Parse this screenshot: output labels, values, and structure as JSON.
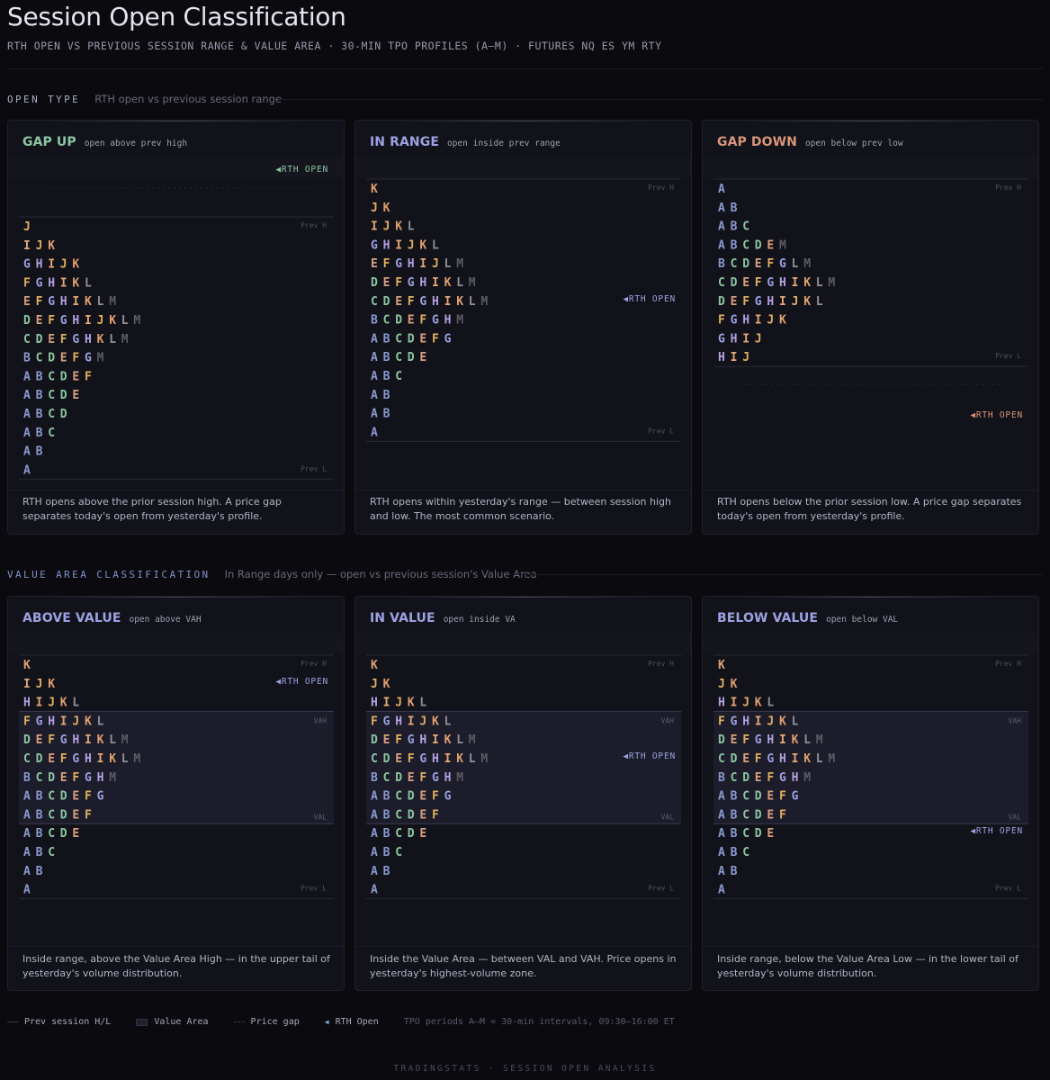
{
  "header": {
    "title": "Session Open Classification",
    "subtitle": "RTH OPEN VS PREVIOUS SESSION RANGE & VALUE AREA · 30-MIN TPO PROFILES (A–M) · FUTURES NQ ES YM RTY"
  },
  "sections": [
    {
      "label": "OPEN TYPE",
      "sub": "RTH open vs previous session range",
      "color": "#a8aec8"
    },
    {
      "label": "VALUE AREA CLASSIFICATION",
      "sub": "In Range days only — open vs previous session's Value Area",
      "color": "#7f8fc8"
    }
  ],
  "letter_colors": {
    "A": "#8a9ad0",
    "B": "#8a9ad0",
    "C": "#8cc6a2",
    "D": "#8cc6a2",
    "E": "#d9a080",
    "F": "#e0b060",
    "G": "#9ca2e2",
    "H": "#b4a2e2",
    "I": "#e4a878",
    "J": "#e0b060",
    "K": "#e0a070",
    "L": "#909096",
    "M": "#5c5c66"
  },
  "marks": {
    "prev_high": "Prev H",
    "prev_low": "Prev L",
    "vah": "VAH",
    "val": "VAL",
    "rth_open": "RTH OPEN"
  },
  "cards": [
    {
      "name": "GAP UP",
      "tag": "open above prev high",
      "color": "#8cc6a2",
      "open_color": "#8cc6a2",
      "rows": [
        "J",
        "IJK",
        "GHIJK",
        "FGHIKL",
        "EFGHIKLM",
        "DEFGHIJKLM",
        "CDEFGHKLM",
        "BCDEFGM",
        "ABCDEF",
        "ABCDE",
        "ABCD",
        "ABC",
        "AB",
        "A"
      ],
      "high_row": 0,
      "low_row": 13,
      "open_pos": "above",
      "gap": "above",
      "va": null,
      "desc": "RTH opens above the prior session high. A price gap separates today's open from yesterday's profile."
    },
    {
      "name": "IN RANGE",
      "tag": "open inside prev range",
      "color": "#9ca2e2",
      "open_color": "#9ca2e2",
      "rows": [
        "K",
        "JK",
        "IJKL",
        "GHIJKL",
        "EFGHIJLM",
        "DEFGHIKLM",
        "CDEFGHIKLM",
        "BCDEFGHM",
        "ABCDEFG",
        "ABCDE",
        "ABC",
        "AB",
        "AB",
        "A"
      ],
      "high_row": 0,
      "low_row": 13,
      "open_row": 6,
      "gap": null,
      "va": null,
      "desc": "RTH opens within yesterday's range — between session high and low. The most common scenario."
    },
    {
      "name": "GAP DOWN",
      "tag": "open below prev low",
      "color": "#d9957a",
      "open_color": "#d9957a",
      "rows": [
        "A",
        "AB",
        "ABC",
        "ABCDEM",
        "BCDEFGLM",
        "CDEFGHIKLM",
        "DEFGHIJKL",
        "FGHIJK",
        "GHIJ",
        "HIJ"
      ],
      "high_row": 0,
      "low_row": 9,
      "open_pos": "below",
      "gap": "below",
      "va": null,
      "desc": "RTH opens below the prior session low. A price gap separates today's open from yesterday's profile."
    },
    {
      "name": "ABOVE VALUE",
      "tag": "open above VAH",
      "color": "#9ca2e2",
      "open_color": "#9ca2e2",
      "rows": [
        "K",
        "IJK",
        "HIJKL",
        "FGHIJKL",
        "DEFGHIKLM",
        "CDEFGHIKLM",
        "BCDEFGHM",
        "ABCDEFG",
        "ABCDEF",
        "ABCDE",
        "ABC",
        "AB",
        "A"
      ],
      "high_row": 0,
      "low_row": 12,
      "open_row": 1,
      "gap": null,
      "va": [
        3,
        8
      ],
      "desc": "Inside range, above the Value Area High — in the upper tail of yesterday's volume distribution."
    },
    {
      "name": "IN VALUE",
      "tag": "open inside VA",
      "color": "#9ca2e2",
      "open_color": "#9ca2e2",
      "rows": [
        "K",
        "JK",
        "HIJKL",
        "FGHIJKL",
        "DEFGHIKLM",
        "CDEFGHIKLM",
        "BCDEFGHM",
        "ABCDEFG",
        "ABCDEF",
        "ABCDE",
        "ABC",
        "AB",
        "A"
      ],
      "high_row": 0,
      "low_row": 12,
      "open_row": 5,
      "gap": null,
      "va": [
        3,
        8
      ],
      "desc": "Inside the Value Area — between VAL and VAH. Price opens in yesterday's highest-volume zone."
    },
    {
      "name": "BELOW VALUE",
      "tag": "open below VAL",
      "color": "#9ca2e2",
      "open_color": "#9ca2e2",
      "rows": [
        "K",
        "JK",
        "HIJKL",
        "FGHIJKL",
        "DEFGHIKLM",
        "CDEFGHIKLM",
        "BCDEFGHM",
        "ABCDEFG",
        "ABCDEF",
        "ABCDE",
        "ABC",
        "AB",
        "A"
      ],
      "high_row": 0,
      "low_row": 12,
      "open_row": 9,
      "gap": null,
      "va": [
        3,
        8
      ],
      "desc": "Inside range, below the Value Area Low — in the lower tail of yesterday's volume distribution."
    }
  ],
  "legend": {
    "prev_hl": "Prev session H/L",
    "value_area": "Value Area",
    "price_gap": "Price gap",
    "rth_open": "RTH Open",
    "note": "TPO periods A–M = 30-min intervals, 09:30–16:00 ET"
  },
  "footer": "TRADINGSTATS · SESSION OPEN ANALYSIS"
}
